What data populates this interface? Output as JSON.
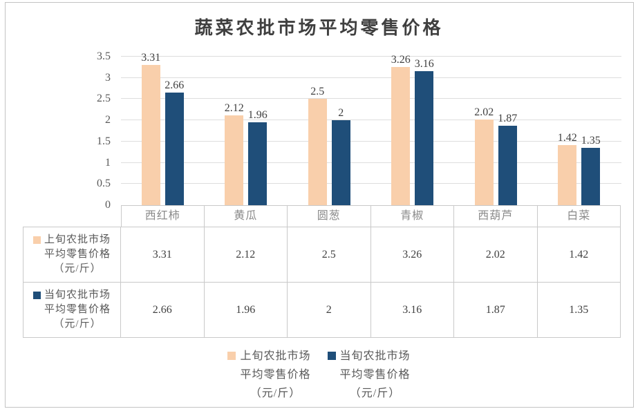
{
  "title": "蔬菜农批市场平均零售价格",
  "chart_data": {
    "type": "bar",
    "title": "蔬菜农批市场平均零售价格",
    "categories": [
      "西红柿",
      "黄瓜",
      "圆葱",
      "青椒",
      "西葫芦",
      "白菜"
    ],
    "series": [
      {
        "name": "上旬农批市场平均零售价格（元/斤）",
        "color": "#F9CFAB",
        "values": [
          3.31,
          2.12,
          2.5,
          3.26,
          2.02,
          1.42
        ],
        "labels": [
          "3.31",
          "2.12",
          "2.5",
          "3.26",
          "2.02",
          "1.42"
        ]
      },
      {
        "name": "当旬农批市场平均零售价格（元/斤）",
        "color": "#1F4E79",
        "values": [
          2.66,
          1.96,
          2,
          3.16,
          1.87,
          1.35
        ],
        "labels": [
          "2.66",
          "1.96",
          "2",
          "3.16",
          "1.87",
          "1.35"
        ]
      }
    ],
    "xlabel": "",
    "ylabel": "",
    "ylim": [
      0,
      3.5
    ],
    "yticks": [
      0,
      0.5,
      1,
      1.5,
      2,
      2.5,
      3,
      3.5
    ],
    "grid": true,
    "legend_position": "bottom",
    "has_data_table": true
  },
  "legend": {
    "items": [
      {
        "color": "#F9CFAB",
        "lines": [
          "上旬农批市场",
          "平均零售价格",
          "（元/斤）"
        ]
      },
      {
        "color": "#1F4E79",
        "lines": [
          "当旬农批市场",
          "平均零售价格",
          "（元/斤）"
        ]
      }
    ]
  }
}
